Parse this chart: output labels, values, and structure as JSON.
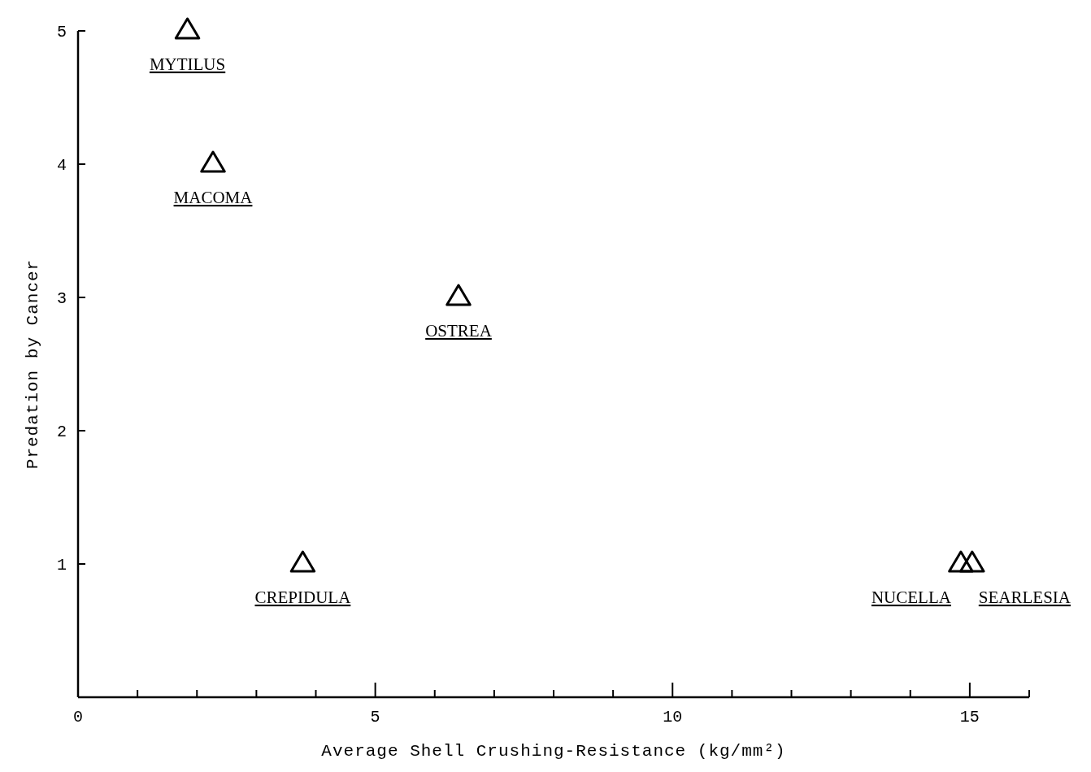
{
  "chart_data": {
    "type": "scatter",
    "xlabel": "Average Shell Crushing-Resistance (kg/mm²)",
    "ylabel": "Predation by Cancer",
    "series": [
      {
        "color": "#000000",
        "x": [
          1.84,
          2.27,
          6.4,
          3.78,
          14.85,
          15.04
        ],
        "values": [
          5,
          4,
          3,
          1,
          1,
          1
        ]
      }
    ],
    "annotations": [
      {
        "text": "MYTILUS",
        "x": 1.84,
        "y": 5
      },
      {
        "text": "MACOMA",
        "x": 2.27,
        "y": 4
      },
      {
        "text": "OSTREA",
        "x": 6.4,
        "y": 3
      },
      {
        "text": "CREPIDULA",
        "x": 3.78,
        "y": 1
      },
      {
        "text": "NUCELLA",
        "x": 14.85,
        "y": 1
      },
      {
        "text": "SEARLESIA",
        "x": 15.04,
        "y": 1
      }
    ],
    "marker": "triangle",
    "grid": false,
    "xlim": [
      0,
      16
    ],
    "xticks": [
      0,
      {
        "value": 1,
        "label": null
      },
      {
        "value": 2,
        "label": null
      },
      {
        "value": 3,
        "label": null
      },
      {
        "value": 4,
        "label": null
      },
      5,
      {
        "value": 6,
        "label": null
      },
      {
        "value": 7,
        "label": null
      },
      {
        "value": 8,
        "label": null
      },
      {
        "value": 9,
        "label": null
      },
      10,
      {
        "value": 11,
        "label": null
      },
      {
        "value": 12,
        "label": null
      },
      {
        "value": 13,
        "label": null
      },
      {
        "value": 14,
        "label": null
      },
      15,
      {
        "value": 16,
        "label": null
      }
    ],
    "ylim": [
      0,
      5
    ],
    "yticks": [
      1,
      2,
      3,
      4,
      5
    ]
  }
}
